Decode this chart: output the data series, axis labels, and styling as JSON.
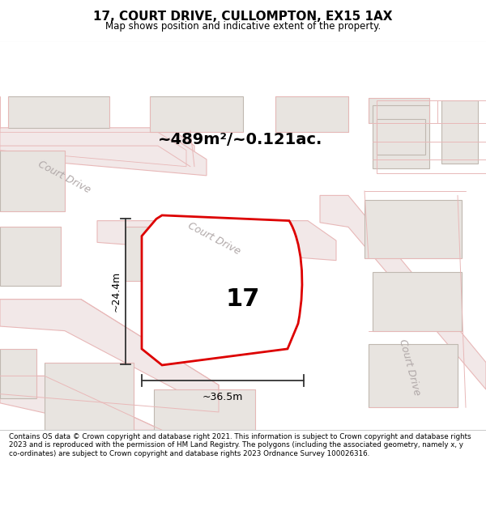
{
  "title": "17, COURT DRIVE, CULLOMPTON, EX15 1AX",
  "subtitle": "Map shows position and indicative extent of the property.",
  "area_text": "~489m²/~0.121ac.",
  "label_17": "17",
  "dim_width": "~36.5m",
  "dim_height": "~24.4m",
  "footnote": "Contains OS data © Crown copyright and database right 2021. This information is subject to Crown copyright and database rights 2023 and is reproduced with the permission of HM Land Registry. The polygons (including the associated geometry, namely x, y co-ordinates) are subject to Crown copyright and database rights 2023 Ordnance Survey 100026316.",
  "bg_color": "#f7f4f2",
  "road_fill": "#f2e8e8",
  "road_line": "#e8b8b8",
  "building_fill": "#e8e4e0",
  "building_line": "#c0b8b0",
  "road_text_color": "#b0a8a8",
  "red_line": "#dd0000",
  "dim_color": "#333333",
  "title_color": "#000000"
}
